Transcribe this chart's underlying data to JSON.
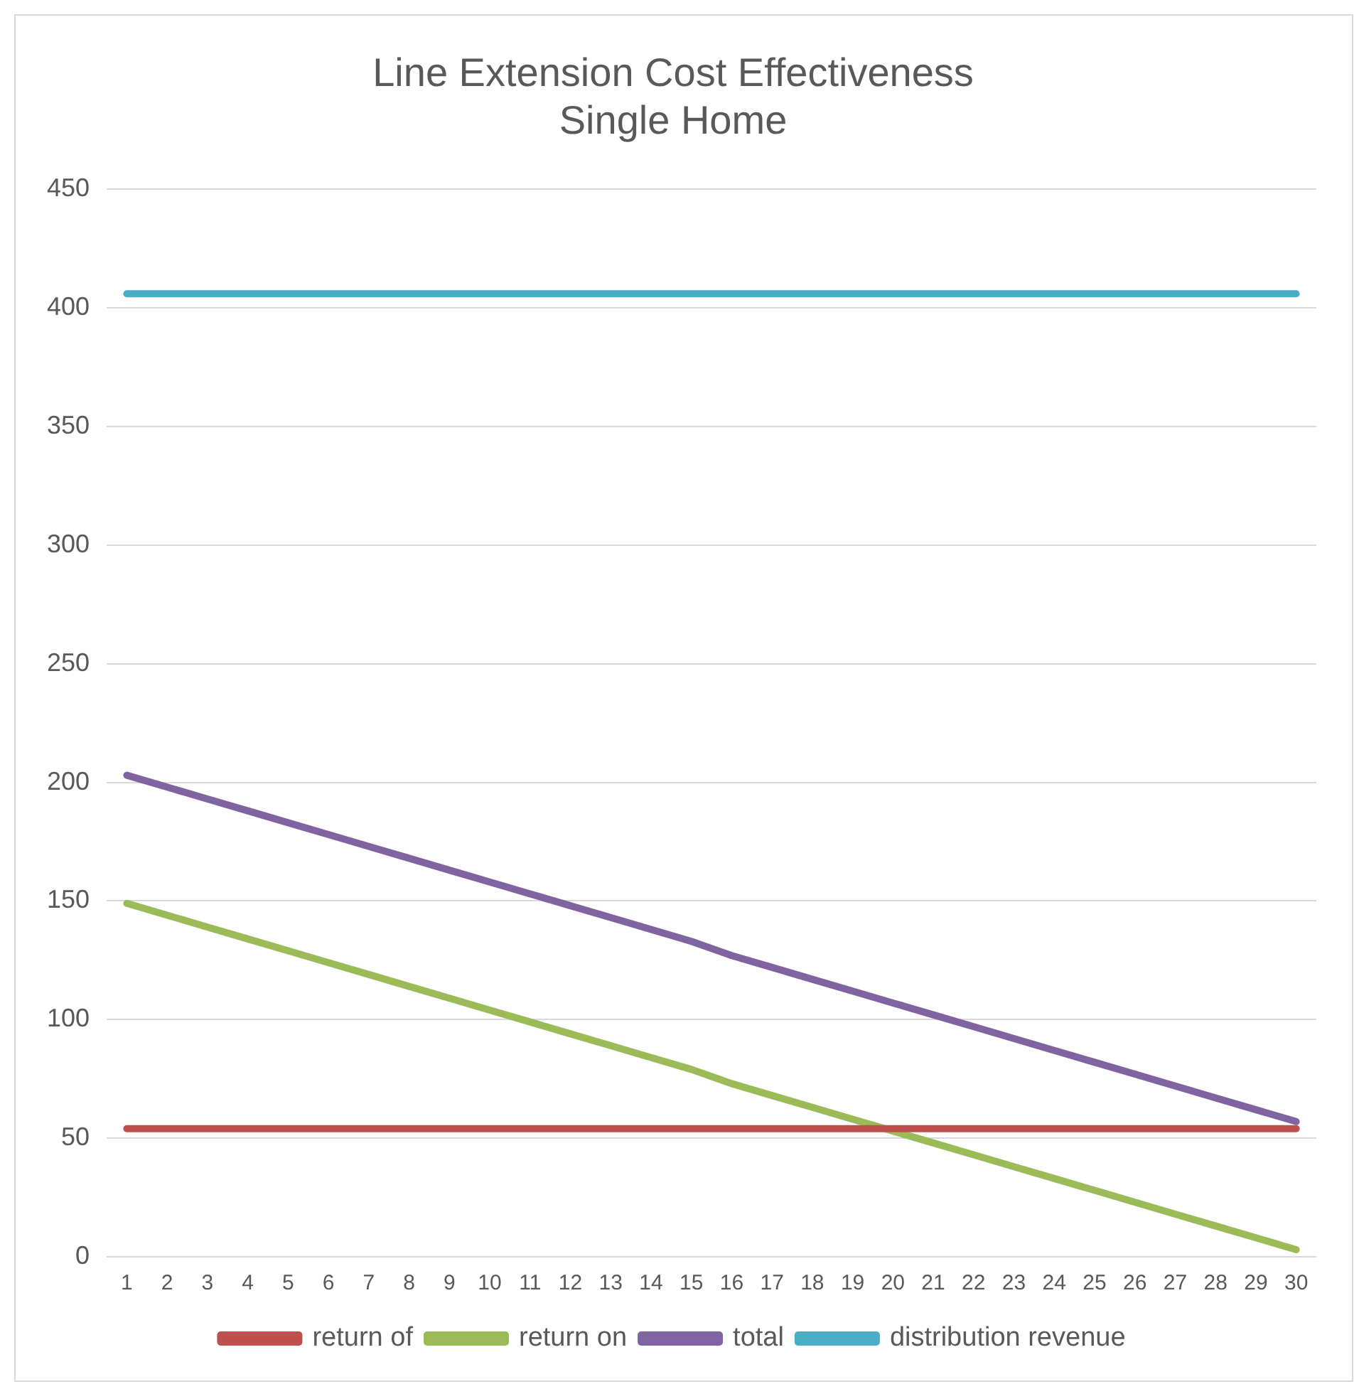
{
  "chart_data": {
    "type": "line",
    "title": "Line Extension Cost Effectiveness",
    "subtitle": "Single Home",
    "x": [
      1,
      2,
      3,
      4,
      5,
      6,
      7,
      8,
      9,
      10,
      11,
      12,
      13,
      14,
      15,
      16,
      17,
      18,
      19,
      20,
      21,
      22,
      23,
      24,
      25,
      26,
      27,
      28,
      29,
      30
    ],
    "xlim": [
      0.5,
      30.5
    ],
    "xticks": [
      1,
      2,
      3,
      4,
      5,
      6,
      7,
      8,
      9,
      10,
      11,
      12,
      13,
      14,
      15,
      16,
      17,
      18,
      19,
      20,
      21,
      22,
      23,
      24,
      25,
      26,
      27,
      28,
      29,
      30
    ],
    "series": [
      {
        "name": "return of",
        "color": "#c0504d",
        "values": [
          54,
          54,
          54,
          54,
          54,
          54,
          54,
          54,
          54,
          54,
          54,
          54,
          54,
          54,
          54,
          54,
          54,
          54,
          54,
          54,
          54,
          54,
          54,
          54,
          54,
          54,
          54,
          54,
          54,
          54
        ]
      },
      {
        "name": "return on",
        "color": "#9bbb59",
        "values": [
          149,
          144,
          139,
          134,
          129,
          124,
          119,
          114,
          109,
          104,
          99,
          94,
          89,
          84,
          79,
          73,
          68,
          63,
          58,
          53,
          48,
          43,
          38,
          33,
          28,
          23,
          18,
          13,
          8,
          3
        ]
      },
      {
        "name": "total",
        "color": "#8064a2",
        "values": [
          203,
          198,
          193,
          188,
          183,
          178,
          173,
          168,
          163,
          158,
          153,
          148,
          143,
          138,
          133,
          127,
          122,
          117,
          112,
          107,
          102,
          97,
          92,
          87,
          82,
          77,
          72,
          67,
          62,
          57
        ]
      },
      {
        "name": "distribution revenue",
        "color": "#4bacc6",
        "values": [
          406,
          406,
          406,
          406,
          406,
          406,
          406,
          406,
          406,
          406,
          406,
          406,
          406,
          406,
          406,
          406,
          406,
          406,
          406,
          406,
          406,
          406,
          406,
          406,
          406,
          406,
          406,
          406,
          406,
          406
        ]
      }
    ],
    "ylim": [
      0,
      450
    ],
    "yticks": [
      0,
      50,
      100,
      150,
      200,
      250,
      300,
      350,
      400,
      450
    ],
    "grid": "y",
    "legend": "bottom",
    "marker": "none",
    "line_style": "solid"
  }
}
